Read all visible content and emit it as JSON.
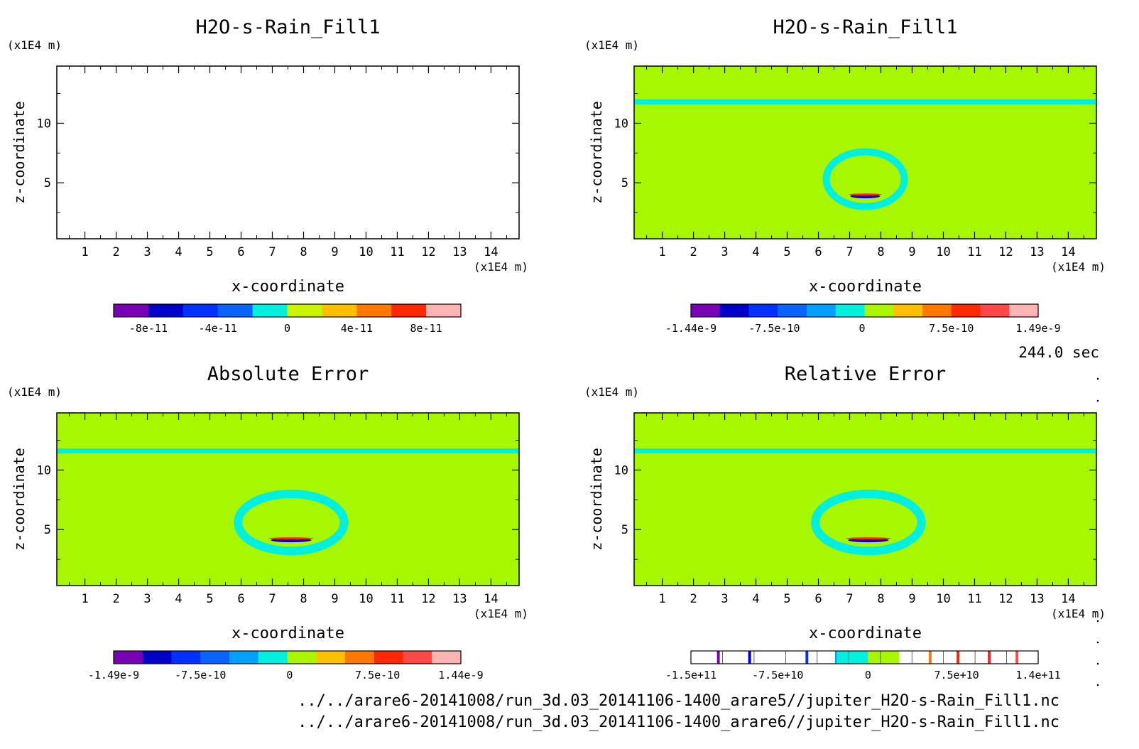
{
  "time_label": "244.0 sec",
  "files": [
    "../../arare6-20141008/run_3d.03_20141106-1400_arare5//jupiter_H2O-s-Rain_Fill1.nc",
    "../../arare6-20141008/run_3d.03_20141106-1400_arare6//jupiter_H2O-s-Rain_Fill1.nc"
  ],
  "colors": {
    "field": "#a6f700",
    "band": "#00f0e0",
    "palette": [
      "#7a00b4",
      "#0000c8",
      "#0032ff",
      "#0a64ff",
      "#00a0ff",
      "#00f0e0",
      "#aaf500",
      "#ffc000",
      "#ff7800",
      "#ff2800",
      "#ff4848",
      "#ffb4b4"
    ]
  },
  "chart_data": [
    {
      "type": "heatmap",
      "title": "H2O-s-Rain_Fill1",
      "xlabel": "x-coordinate",
      "ylabel": "z-coordinate",
      "x_unit": "(x1E4 m)",
      "z_unit": "(x1E4 m)",
      "xlim": [
        0.1,
        14.9
      ],
      "ylim": [
        0.3,
        14.8
      ],
      "x_ticks": [
        1,
        2,
        3,
        4,
        5,
        6,
        7,
        8,
        9,
        10,
        11,
        12,
        13,
        14
      ],
      "y_ticks": [
        5,
        10
      ],
      "field": "empty",
      "colorbar": {
        "style": "filled",
        "colors": [
          "#7a00b4",
          "#0000c8",
          "#0032ff",
          "#0a64ff",
          "#00f0e0",
          "#c8f500",
          "#ffc000",
          "#ff7800",
          "#ff2800",
          "#ffb4b4"
        ],
        "ticks": [
          {
            "label": "-8e-11",
            "pos": 0.1
          },
          {
            "label": "-4e-11",
            "pos": 0.3
          },
          {
            "label": "0",
            "pos": 0.5
          },
          {
            "label": "4e-11",
            "pos": 0.7
          },
          {
            "label": "8e-11",
            "pos": 0.9
          }
        ]
      }
    },
    {
      "type": "heatmap",
      "title": "H2O-s-Rain_Fill1",
      "xlabel": "x-coordinate",
      "ylabel": "z-coordinate",
      "x_unit": "(x1E4 m)",
      "z_unit": "(x1E4 m)",
      "xlim": [
        0.1,
        14.9
      ],
      "ylim": [
        0.3,
        14.8
      ],
      "x_ticks": [
        1,
        2,
        3,
        4,
        5,
        6,
        7,
        8,
        9,
        10,
        11,
        12,
        13,
        14
      ],
      "y_ticks": [
        5,
        10
      ],
      "field": "bubble",
      "band_z": 11.8,
      "bubble": {
        "cx": 7.5,
        "cz": 5.3,
        "rx": 1.25,
        "rz": 2.3
      },
      "colorbar": {
        "style": "filled",
        "colors": [
          "#7a00b4",
          "#0000c8",
          "#0032ff",
          "#0a64ff",
          "#00a0ff",
          "#00f0e0",
          "#aaf500",
          "#ffc000",
          "#ff7800",
          "#ff2800",
          "#ff4848",
          "#ffb4b4"
        ],
        "ticks": [
          {
            "label": "-1.44e-9",
            "pos": 0.0
          },
          {
            "label": "-7.5e-10",
            "pos": 0.24
          },
          {
            "label": "0",
            "pos": 0.493
          },
          {
            "label": "7.5e-10",
            "pos": 0.75
          },
          {
            "label": "1.49e-9",
            "pos": 1.0
          }
        ]
      }
    },
    {
      "type": "heatmap",
      "title": "Absolute Error",
      "xlabel": "x-coordinate",
      "ylabel": "z-coordinate",
      "x_unit": "(x1E4 m)",
      "z_unit": "(x1E4 m)",
      "xlim": [
        0.1,
        14.9
      ],
      "ylim": [
        0.3,
        14.8
      ],
      "x_ticks": [
        1,
        2,
        3,
        4,
        5,
        6,
        7,
        8,
        9,
        10,
        11,
        12,
        13,
        14
      ],
      "y_ticks": [
        5,
        10
      ],
      "field": "bubble",
      "band_z": 11.6,
      "bubble": {
        "cx": 7.6,
        "cz": 5.6,
        "rx": 1.7,
        "rz": 2.4
      },
      "colorbar": {
        "style": "filled",
        "colors": [
          "#7a00b4",
          "#0000c8",
          "#0032ff",
          "#0a64ff",
          "#00a0ff",
          "#00f0e0",
          "#aaf500",
          "#ffc000",
          "#ff7800",
          "#ff2800",
          "#ff4848",
          "#ffb4b4"
        ],
        "ticks": [
          {
            "label": "-1.49e-9",
            "pos": 0.0
          },
          {
            "label": "-7.5e-10",
            "pos": 0.25
          },
          {
            "label": "0",
            "pos": 0.507
          },
          {
            "label": "7.5e-10",
            "pos": 0.76
          },
          {
            "label": "1.44e-9",
            "pos": 1.0
          }
        ]
      }
    },
    {
      "type": "heatmap",
      "title": "Relative Error",
      "xlabel": "x-coordinate",
      "ylabel": "z-coordinate",
      "x_unit": "(x1E4 m)",
      "z_unit": "(x1E4 m)",
      "xlim": [
        0.1,
        14.9
      ],
      "ylim": [
        0.3,
        14.8
      ],
      "x_ticks": [
        1,
        2,
        3,
        4,
        5,
        6,
        7,
        8,
        9,
        10,
        11,
        12,
        13,
        14
      ],
      "y_ticks": [
        5,
        10
      ],
      "field": "bubble",
      "band_z": 11.6,
      "bubble": {
        "cx": 7.6,
        "cz": 5.6,
        "rx": 1.7,
        "rz": 2.4
      },
      "colorbar": {
        "style": "sparse",
        "colors": [
          "#ffffff",
          "#7a00b4",
          "#0000c8",
          "#0a64ff",
          "#00f0e0",
          "#aaf500",
          "#ffffff",
          "#ff7800",
          "#ff2800",
          "#ff4848",
          "#ffffff"
        ],
        "ticks": [
          {
            "label": "-1.5e+11",
            "pos": 0.0
          },
          {
            "label": "-7.5e+10",
            "pos": 0.25
          },
          {
            "label": "0",
            "pos": 0.51
          },
          {
            "label": "7.5e+10",
            "pos": 0.765
          },
          {
            "label": "1.4e+11",
            "pos": 1.0
          }
        ]
      }
    }
  ]
}
